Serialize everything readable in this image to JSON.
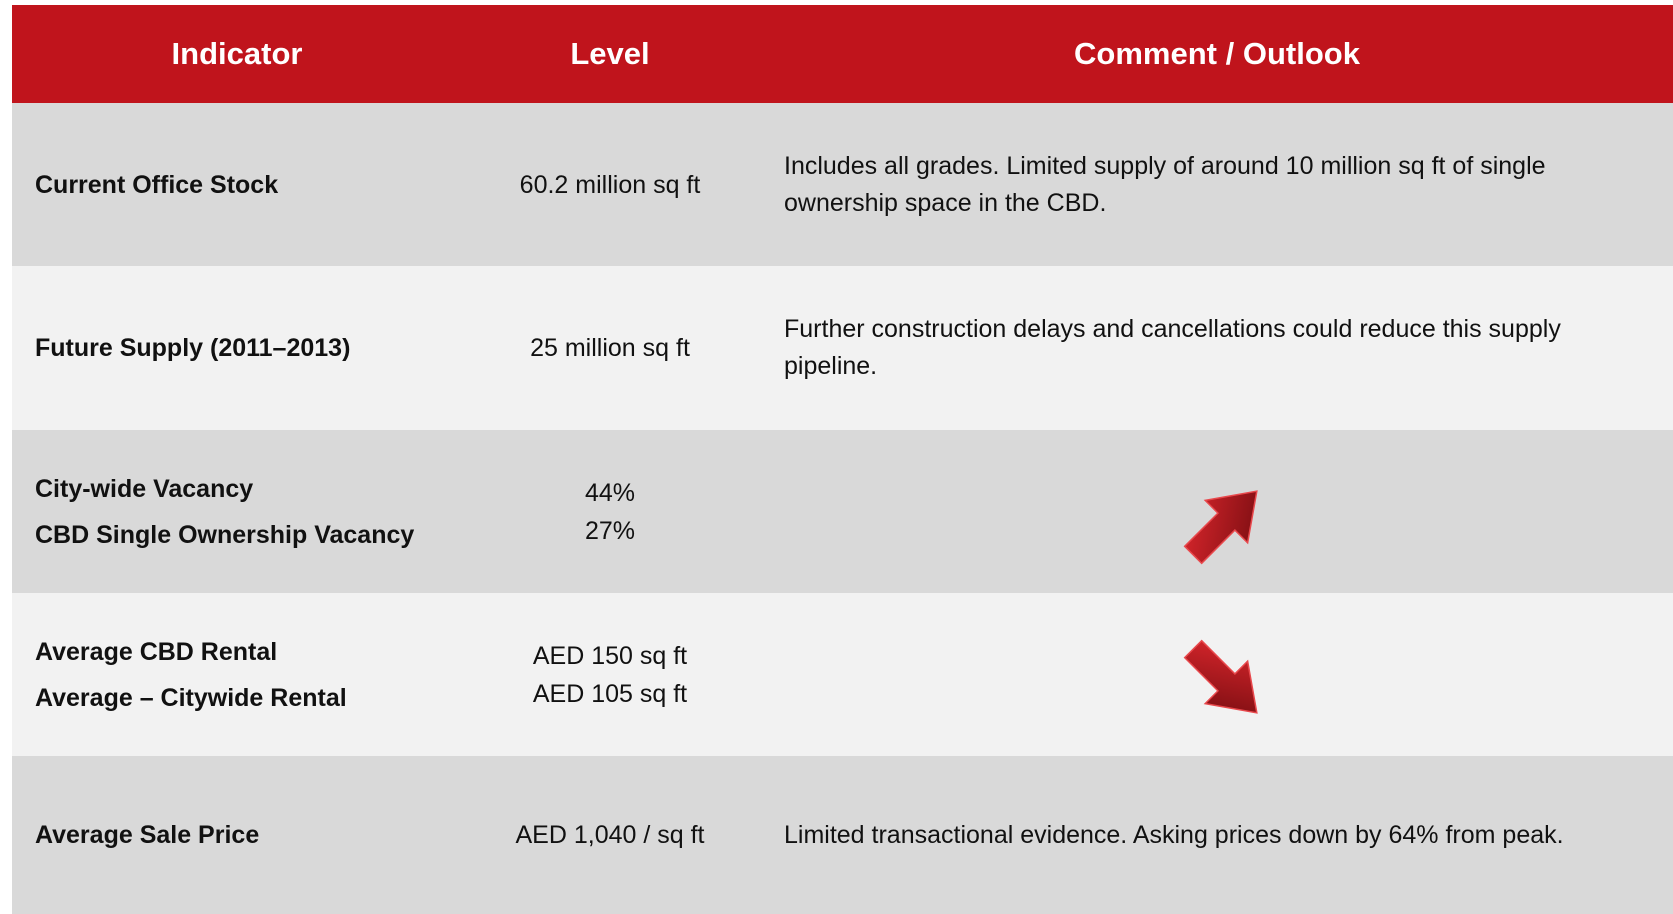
{
  "header": [
    "Indicator",
    "Level",
    "Comment / Outlook"
  ],
  "rows": [
    {
      "indicator": [
        "Current Office Stock"
      ],
      "level": [
        "60.2 million sq ft"
      ],
      "comment": "Includes all grades. Limited supply of around 10 million sq ft of single ownership space in the CBD."
    },
    {
      "indicator": [
        "Future Supply (2011–2013)"
      ],
      "level": [
        "25 million sq ft"
      ],
      "comment": "Further construction delays and cancellations could reduce this supply pipeline."
    },
    {
      "indicator": [
        "City-wide Vacancy",
        "CBD Single Ownership Vacancy"
      ],
      "level": [
        "44%",
        "27%"
      ]
    },
    {
      "indicator": [
        "Average CBD Rental",
        "Average – Citywide Rental"
      ],
      "level": [
        "AED 150 sq ft",
        "AED 105 sq ft"
      ]
    },
    {
      "indicator": [
        "Average Sale Price"
      ],
      "level": [
        "AED 1,040 / sq ft"
      ],
      "comment": "Limited transactional evidence. Asking prices down by 64% from peak."
    }
  ]
}
